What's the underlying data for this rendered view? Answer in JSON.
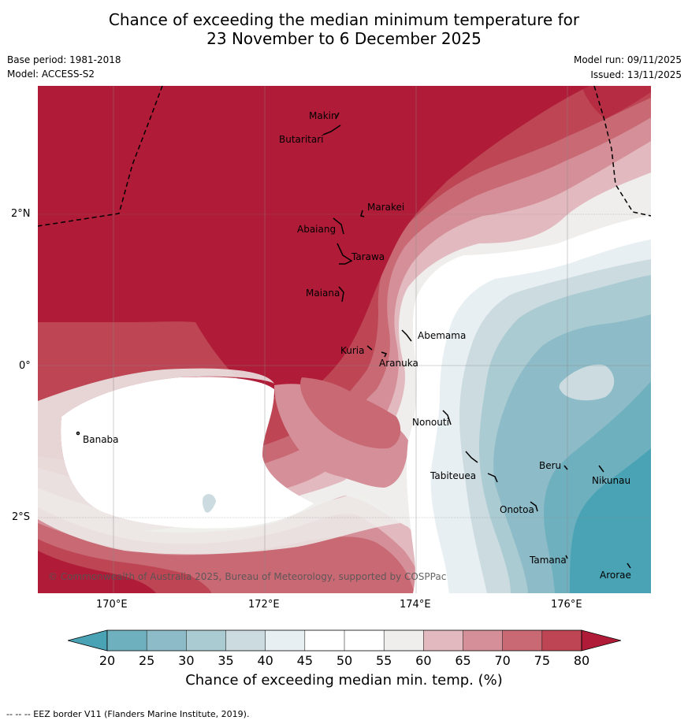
{
  "title": {
    "line1": "Chance of exceeding the median minimum temperature for",
    "line2": "23 November to 6 December 2025"
  },
  "meta": {
    "base_period": "Base period: 1981-2018",
    "model": "Model: ACCESS-S2",
    "model_run": "Model run: 09/11/2025",
    "issued": "Issued: 13/11/2025"
  },
  "map": {
    "copyright": "© Commonwealth of Australia 2025, Bureau of Meteorology, supported by COSPPac",
    "lat_labels": [
      "2°N",
      "0°",
      "2°S"
    ],
    "lon_labels": [
      "170°E",
      "172°E",
      "174°E",
      "176°E"
    ],
    "places": [
      "Makin",
      "Butaritari",
      "Marakei",
      "Abaiang",
      "Tarawa",
      "Maiana",
      "Abemama",
      "Kuria",
      "Aranuka",
      "Banaba",
      "Nonouti",
      "Tabiteuea",
      "Beru",
      "Nikunau",
      "Onotoa",
      "Tamana",
      "Arorae"
    ]
  },
  "colorbar": {
    "ticks": [
      "20",
      "25",
      "30",
      "35",
      "40",
      "45",
      "50",
      "55",
      "60",
      "65",
      "70",
      "75",
      "80"
    ],
    "colors": [
      "#4aa3b5",
      "#6fb0bf",
      "#8dbcc8",
      "#abcbd2",
      "#cbdbe0",
      "#e8eff2",
      "#ffffff",
      "#ffffff",
      "#efeeec",
      "#e2b9bf",
      "#d58f98",
      "#c86974",
      "#bd4554",
      "#b01c37"
    ],
    "title": "Chance of exceeding median min. temp. (%)"
  },
  "footnote": "--  --  -- EEZ border V11 (Flanders Marine Institute, 2019).",
  "palette": {
    "c80": "#b01c37",
    "c75": "#bd4554",
    "c70": "#c86974",
    "c65": "#d58f98",
    "c60": "#e2b9bf",
    "c55": "#efeeec",
    "c50": "#ffffff",
    "c40": "#e8eff2",
    "c35": "#cbdbe0",
    "c30": "#abcbd2",
    "c25": "#8dbcc8",
    "c20": "#6fb0bf",
    "c15": "#4aa3b5"
  }
}
